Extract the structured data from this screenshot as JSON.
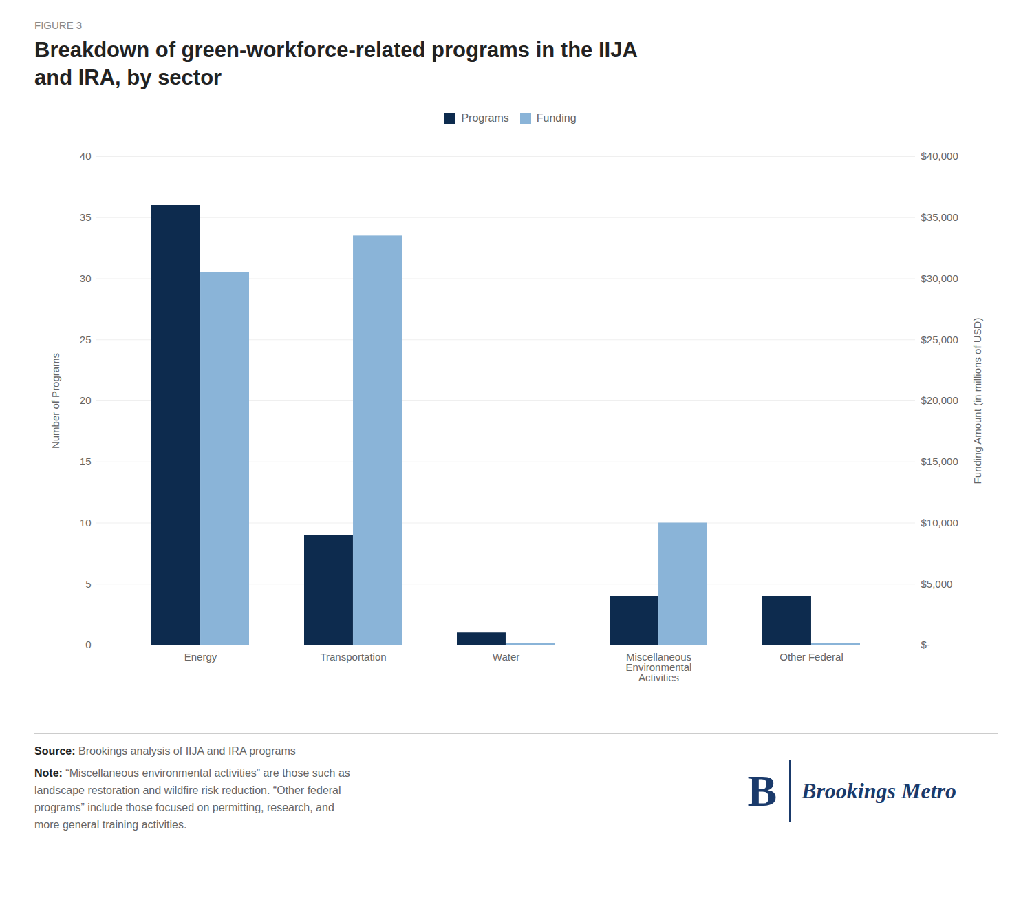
{
  "chart_data": {
    "type": "bar",
    "title": "Breakdown of green-workforce-related programs in the IIJA\nand IRA, by sector",
    "annotations": [
      "FIGURE 3",
      "Source: Brookings analysis of IIJA and IRA programs",
      "Note: “Miscellaneous environmental activities” are those such as\nlandscape restoration and wildfire risk reduction. “Other federal\nprograms” include those focused on permitting, research, and\nmore general training activities.",
      "B",
      "Brookings Metro"
    ],
    "categories": [
      "Energy",
      "Transportation",
      "Water",
      "Miscellaneous\nEnvironmental\nActivities",
      "Other Federal"
    ],
    "series": [
      {
        "name": "Programs",
        "color": "#0d2b4e",
        "values": [
          36,
          9,
          1,
          4,
          4
        ]
      },
      {
        "name": "Funding",
        "color": "#8ab4d8",
        "values": [
          30500,
          33500,
          150,
          10000,
          150
        ],
        "axis": "y2"
      }
    ],
    "ylabel": "Number of Programs",
    "y2label": "Funding Amount (in millions of USD)",
    "ylim": [
      0,
      40
    ],
    "yticks": [
      0,
      5,
      10,
      15,
      20,
      25,
      30,
      35,
      40
    ],
    "y2lim": [
      0,
      40000
    ],
    "y2ticks": [
      {
        "value": 0,
        "label": "$-"
      },
      {
        "value": 5000,
        "label": "$5,000"
      },
      {
        "value": 10000,
        "label": "$10,000"
      },
      {
        "value": 15000,
        "label": "$15,000"
      },
      {
        "value": 20000,
        "label": "$20,000"
      },
      {
        "value": 25000,
        "label": "$25,000"
      },
      {
        "value": 30000,
        "label": "$30,000"
      },
      {
        "value": 35000,
        "label": "$35,000"
      },
      {
        "value": 40000,
        "label": "$40,000"
      }
    ],
    "grid": true,
    "legend": "top"
  }
}
